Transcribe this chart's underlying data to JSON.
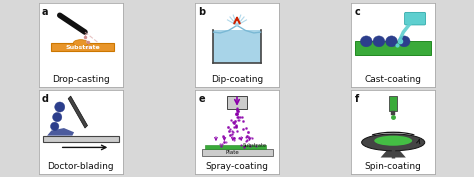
{
  "panels": [
    {
      "label": "a",
      "title": "Drop-casting"
    },
    {
      "label": "b",
      "title": "Dip-coating"
    },
    {
      "label": "c",
      "title": "Cast-coating"
    },
    {
      "label": "d",
      "title": "Doctor-blading"
    },
    {
      "label": "e",
      "title": "Spray-coating"
    },
    {
      "label": "f",
      "title": "Spin-coating"
    }
  ],
  "label_fontsize": 7,
  "title_fontsize": 6.5,
  "fig_bg": "#d8d8d8",
  "panel_bg": "#ffffff",
  "border_color": "#aaaaaa",
  "colors": {
    "orange": "#E8952A",
    "orange_dark": "#cc7700",
    "blue_light": "#a8d4e8",
    "blue_mid": "#7ab8d4",
    "blue_dark": "#1a237e",
    "navy": "#2c3e8c",
    "green": "#3aaa3a",
    "green_bright": "#44cc44",
    "teal": "#5ecfcf",
    "teal_dark": "#20a0a0",
    "purple": "#8B00AA",
    "pink_light": "#ffaacc",
    "gray": "#9E9E9E",
    "gray_light": "#cccccc",
    "red": "#cc2200",
    "black": "#111111",
    "white": "#ffffff",
    "silver": "#B0BEC5",
    "dark_gray": "#444444",
    "substrate_text": "#222222"
  }
}
